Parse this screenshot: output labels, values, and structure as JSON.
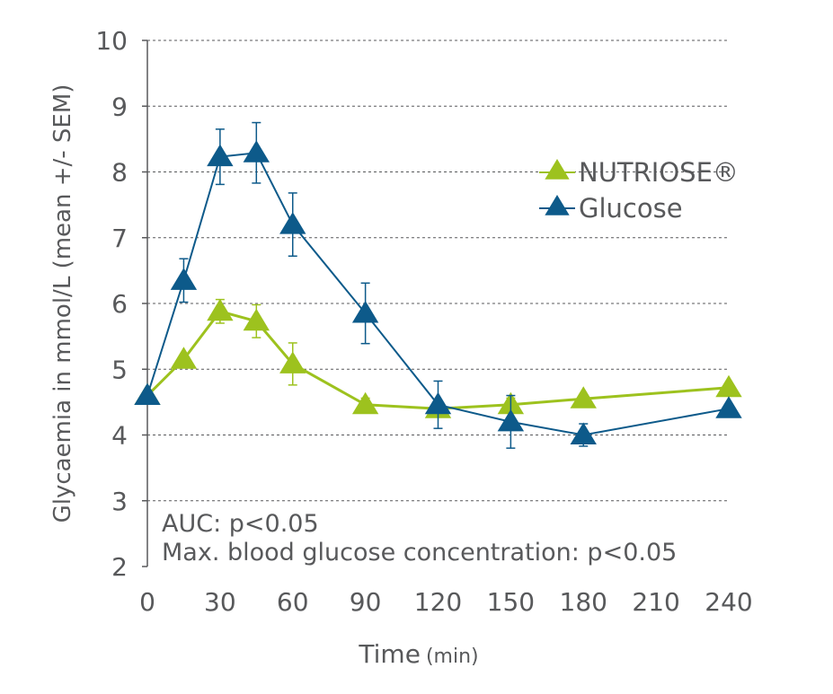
{
  "chart_data": {
    "type": "line",
    "title": "",
    "xlabel_main": "Time",
    "xlabel_unit": "(min)",
    "ylabel": "Glycaemia in mmol/L (mean +/- SEM)",
    "xlim": [
      0,
      240
    ],
    "ylim": [
      2,
      10
    ],
    "xticks": [
      0,
      30,
      60,
      90,
      120,
      150,
      180,
      210,
      240
    ],
    "yticks": [
      2,
      3,
      4,
      5,
      6,
      7,
      8,
      9,
      10
    ],
    "grid": "horizontal dashed",
    "legend_position": "top-right",
    "series": [
      {
        "name": "NUTRIOSE®",
        "color": "#9dc21e",
        "x": [
          0,
          15,
          30,
          45,
          60,
          90,
          120,
          150,
          180,
          240
        ],
        "y": [
          4.6,
          5.15,
          5.88,
          5.73,
          5.08,
          4.46,
          4.4,
          4.46,
          4.55,
          4.72
        ],
        "err": [
          0.05,
          0.05,
          0.18,
          0.25,
          0.32,
          0.1,
          0.05,
          0.1,
          0.05,
          0.05
        ]
      },
      {
        "name": "Glucose",
        "color": "#0d5a8a",
        "x": [
          0,
          15,
          30,
          45,
          60,
          90,
          120,
          150,
          180,
          240
        ],
        "y": [
          4.6,
          6.35,
          8.23,
          8.29,
          7.2,
          5.85,
          4.46,
          4.2,
          4.0,
          4.4
        ],
        "err": [
          0.05,
          0.33,
          0.42,
          0.46,
          0.48,
          0.46,
          0.36,
          0.4,
          0.17,
          0.05
        ]
      }
    ],
    "annotations": [
      "AUC: p<0.05",
      "Max. blood glucose concentration: p<0.05"
    ]
  }
}
